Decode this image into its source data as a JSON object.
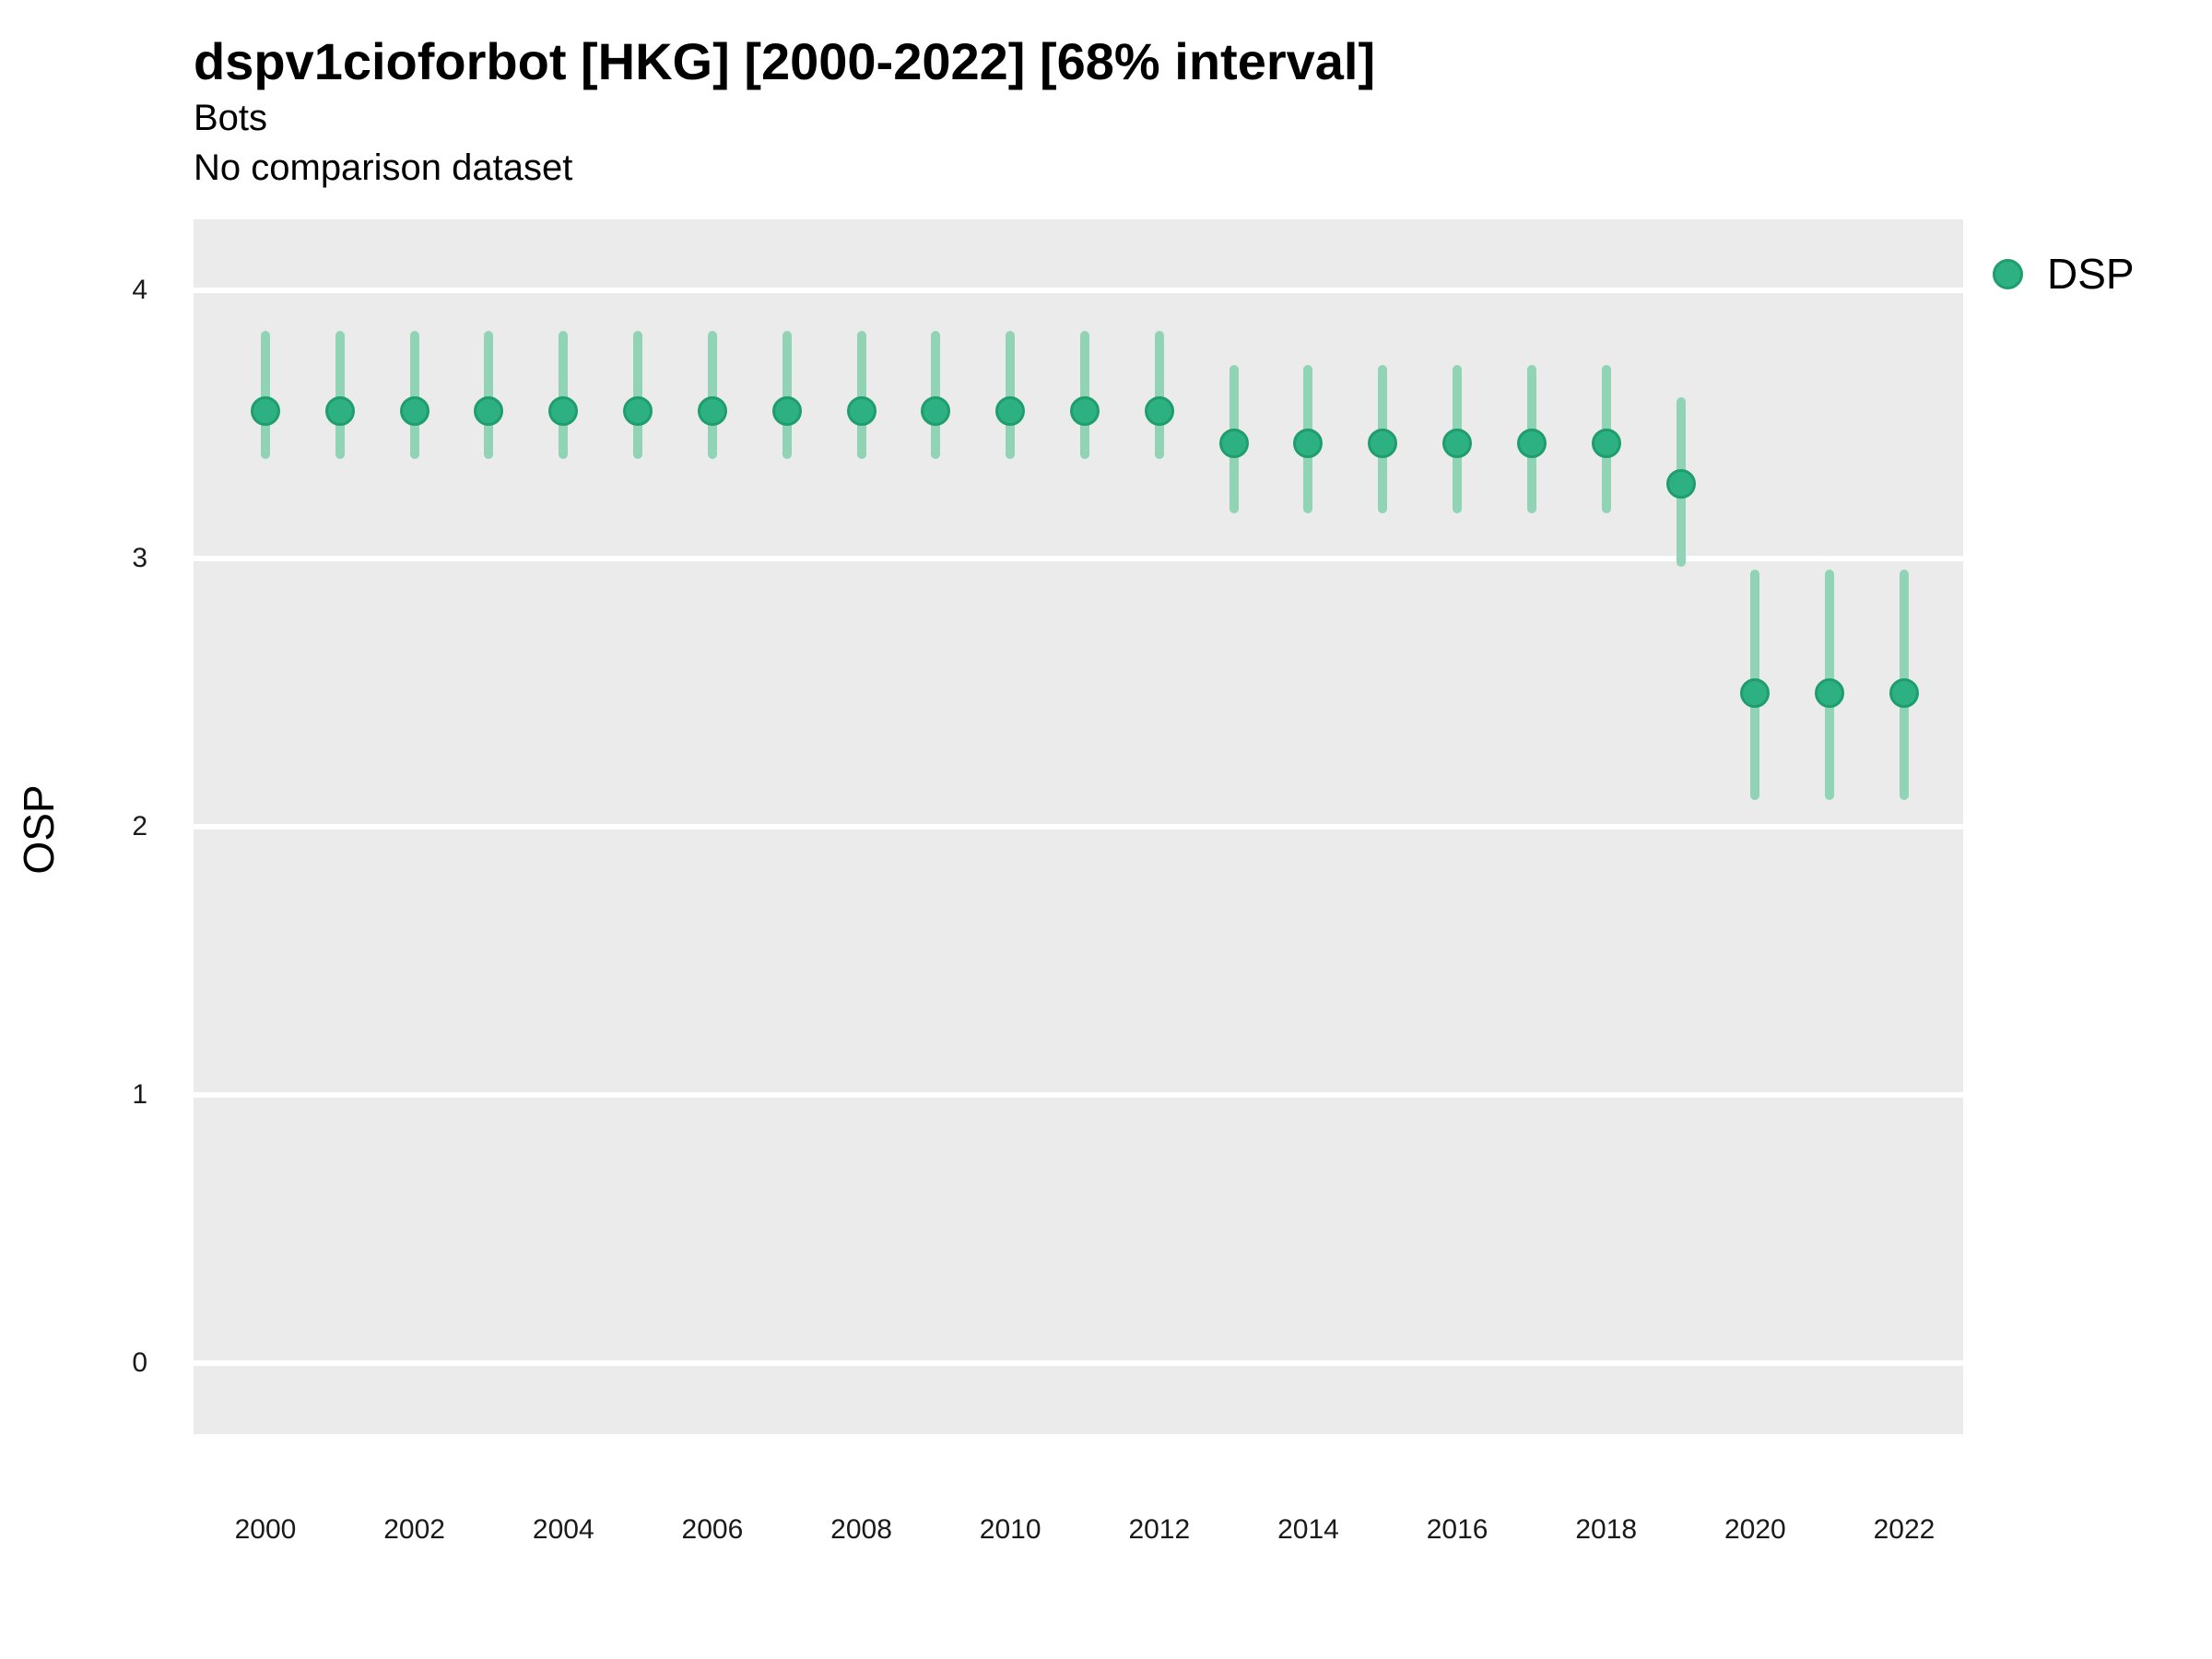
{
  "header": {
    "title": "dspv1cioforbot [HKG] [2000-2022] [68% interval]",
    "subtitle": "Bots",
    "comparison_note": "No comparison dataset"
  },
  "legend": {
    "position": "right",
    "items": [
      {
        "label": "DSP",
        "color": "#2db183"
      }
    ]
  },
  "colors": {
    "panel_background": "#ebebeb",
    "gridline": "#ffffff",
    "point_fill": "#2db183",
    "point_stroke": "#1f9e6d",
    "interval_bar": "#90d3b5",
    "text": "#000000"
  },
  "chart_data": {
    "type": "scatter",
    "subtype": "pointrange",
    "title": "dspv1cioforbot [HKG] [2000-2022] [68% interval]",
    "subtitle": "Bots",
    "annotation": "No comparison dataset",
    "interval_label": "68% interval",
    "xlabel": "",
    "ylabel": "OSP",
    "x": [
      2000,
      2001,
      2002,
      2003,
      2004,
      2005,
      2006,
      2007,
      2008,
      2009,
      2010,
      2011,
      2012,
      2013,
      2014,
      2015,
      2016,
      2017,
      2018,
      2019,
      2020,
      2021,
      2022
    ],
    "series": [
      {
        "name": "DSP",
        "mid": [
          3.55,
          3.55,
          3.55,
          3.55,
          3.55,
          3.55,
          3.55,
          3.55,
          3.55,
          3.55,
          3.55,
          3.55,
          3.55,
          3.43,
          3.43,
          3.43,
          3.43,
          3.43,
          3.43,
          3.28,
          2.5,
          2.5,
          2.5
        ],
        "lower": [
          3.37,
          3.37,
          3.37,
          3.37,
          3.37,
          3.37,
          3.37,
          3.37,
          3.37,
          3.37,
          3.37,
          3.37,
          3.37,
          3.17,
          3.17,
          3.17,
          3.17,
          3.17,
          3.17,
          2.97,
          2.1,
          2.1,
          2.1
        ],
        "upper": [
          3.85,
          3.85,
          3.85,
          3.85,
          3.85,
          3.85,
          3.85,
          3.85,
          3.85,
          3.85,
          3.85,
          3.85,
          3.85,
          3.72,
          3.72,
          3.72,
          3.72,
          3.72,
          3.72,
          3.6,
          2.96,
          2.96,
          2.96
        ]
      }
    ],
    "x_ticks": [
      2000,
      2002,
      2004,
      2006,
      2008,
      2010,
      2012,
      2014,
      2016,
      2018,
      2020,
      2022
    ],
    "y_ticks": [
      0,
      1,
      2,
      3,
      4
    ],
    "ylim": [
      -0.27,
      4.27
    ],
    "grid": "major horizontal white lines on gray panel, no minor grid",
    "legend_position": "right"
  }
}
